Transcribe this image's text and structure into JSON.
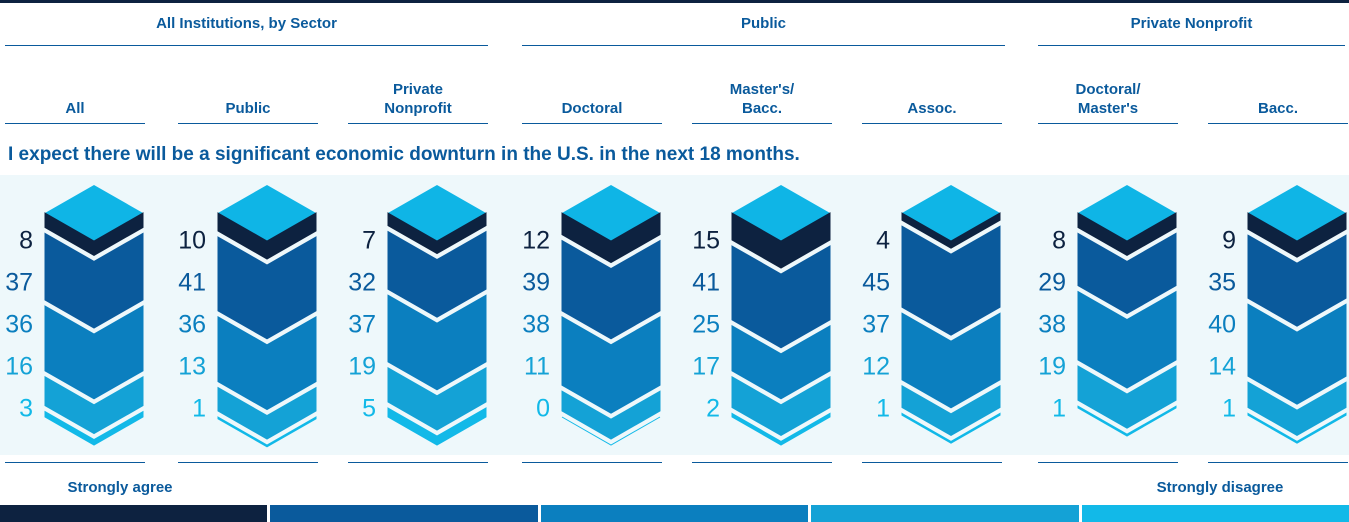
{
  "chart_data": {
    "type": "stacked-chevron",
    "group_headers": [
      "All Institutions, by Sector",
      "Public",
      "Private Nonprofit"
    ],
    "categories": [
      "All",
      "Public",
      "Private\nNonprofit",
      "Doctoral",
      "Master's/\nBacc.",
      "Assoc.",
      "Doctoral/\nMaster's",
      "Bacc."
    ],
    "title": "I expect there will be a significant economic downturn in the U.S. in the next 18 months.",
    "series": [
      {
        "color": "#0d2240",
        "values": [
          8,
          10,
          7,
          12,
          15,
          4,
          8,
          9
        ]
      },
      {
        "color": "#0a5a9c",
        "values": [
          37,
          41,
          32,
          39,
          41,
          45,
          29,
          35
        ]
      },
      {
        "color": "#0b7fbf",
        "values": [
          36,
          36,
          37,
          38,
          25,
          37,
          38,
          40
        ]
      },
      {
        "color": "#14a2d6",
        "values": [
          16,
          13,
          19,
          11,
          17,
          12,
          19,
          14
        ]
      },
      {
        "color": "#12b9e8",
        "values": [
          3,
          1,
          5,
          0,
          2,
          1,
          1,
          1
        ]
      }
    ],
    "cap_color": "#0fb5e6",
    "legend_labels": [
      "Strongly agree",
      "Strongly disagree"
    ]
  }
}
